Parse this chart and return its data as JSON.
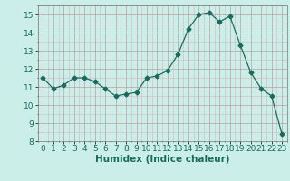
{
  "x": [
    0,
    1,
    2,
    3,
    4,
    5,
    6,
    7,
    8,
    9,
    10,
    11,
    12,
    13,
    14,
    15,
    16,
    17,
    18,
    19,
    20,
    21,
    22,
    23
  ],
  "y": [
    11.5,
    10.9,
    11.1,
    11.5,
    11.5,
    11.3,
    10.9,
    10.5,
    10.6,
    10.7,
    11.5,
    11.6,
    11.9,
    12.8,
    14.2,
    15.0,
    15.1,
    14.6,
    14.9,
    13.3,
    11.8,
    10.9,
    10.5,
    8.4
  ],
  "line_color": "#1a6b5e",
  "marker": "D",
  "marker_size": 2.5,
  "bg_color": "#cceee8",
  "grid_major_color": "#b8a0a0",
  "grid_minor_color": "#d4b8b8",
  "xlabel": "Humidex (Indice chaleur)",
  "ylim": [
    8,
    15.5
  ],
  "xlim": [
    -0.5,
    23.5
  ],
  "yticks": [
    8,
    9,
    10,
    11,
    12,
    13,
    14,
    15
  ],
  "xticks": [
    0,
    1,
    2,
    3,
    4,
    5,
    6,
    7,
    8,
    9,
    10,
    11,
    12,
    13,
    14,
    15,
    16,
    17,
    18,
    19,
    20,
    21,
    22,
    23
  ],
  "tick_fontsize": 6.5,
  "label_fontsize": 7.5
}
